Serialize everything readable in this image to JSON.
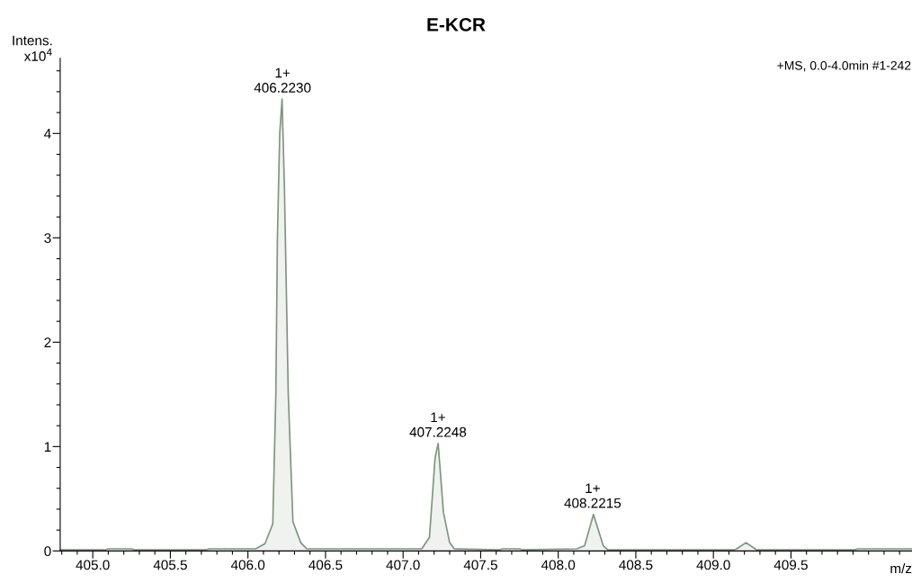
{
  "chart_data": {
    "type": "area",
    "title": "E-KCR",
    "ylabel": "Intens.\nx10$^{4}$",
    "xlabel": "m/z",
    "annotations": [
      "+MS, 0.0-4.0min #1-242",
      {
        "text": "1+\n406.2230",
        "x": 406.223,
        "y": 4.33
      },
      {
        "text": "1+\n407.2248",
        "x": 407.2248,
        "y": 1.03
      },
      {
        "text": "1+\n408.2215",
        "x": 408.2215,
        "y": 0.35
      }
    ],
    "series": [
      {
        "color": "#7d967d",
        "x": [
          404.79,
          405.08,
          405.1,
          405.25,
          405.27,
          405.73,
          405.75,
          406.05,
          406.11,
          406.16,
          406.18,
          406.19,
          406.205,
          406.22,
          406.235,
          406.26,
          406.29,
          406.34,
          406.38,
          407.12,
          407.17,
          407.206,
          407.226,
          407.26,
          407.3,
          407.33,
          407.62,
          407.64,
          407.75,
          407.77,
          408.12,
          408.17,
          408.227,
          408.29,
          408.32,
          409.13,
          409.15,
          409.21,
          409.28,
          409.3,
          409.91,
          409.93,
          410.28
        ],
        "values": [
          0.01,
          0.01,
          0.02,
          0.02,
          0.01,
          0.01,
          0.02,
          0.02,
          0.07,
          0.26,
          1.5,
          3.0,
          4.0,
          4.33,
          3.5,
          1.5,
          0.28,
          0.08,
          0.02,
          0.02,
          0.13,
          0.89,
          1.03,
          0.37,
          0.08,
          0.02,
          0.01,
          0.02,
          0.02,
          0.01,
          0.02,
          0.05,
          0.35,
          0.05,
          0.01,
          0.01,
          0.02,
          0.08,
          0.01,
          0.01,
          0.01,
          0.02,
          0.02
        ]
      }
    ],
    "xlim": [
      404.79,
      410.28
    ],
    "ylim": [
      0,
      4.72
    ],
    "xticks": [
      {
        "value": 405,
        "label": "405.0"
      },
      405.5,
      {
        "value": 406,
        "label": "406.0"
      },
      406.5,
      {
        "value": 407,
        "label": "407.0"
      },
      407.5,
      {
        "value": 408,
        "label": "408.0"
      },
      408.5,
      {
        "value": 409,
        "label": "409.0"
      },
      409.5,
      {
        "value": 410.0,
        "label": null
      },
      {
        "value": 404.8,
        "label": null
      },
      {
        "value": 404.9,
        "label": null
      },
      {
        "value": 405.1,
        "label": null
      },
      {
        "value": 405.2,
        "label": null
      },
      {
        "value": 405.3,
        "label": null
      },
      {
        "value": 405.4,
        "label": null
      },
      {
        "value": 405.6,
        "label": null
      },
      {
        "value": 405.7,
        "label": null
      },
      {
        "value": 405.8,
        "label": null
      },
      {
        "value": 405.9,
        "label": null
      },
      {
        "value": 406.1,
        "label": null
      },
      {
        "value": 406.2,
        "label": null
      },
      {
        "value": 406.3,
        "label": null
      },
      {
        "value": 406.4,
        "label": null
      },
      {
        "value": 406.6,
        "label": null
      },
      {
        "value": 406.7,
        "label": null
      },
      {
        "value": 406.8,
        "label": null
      },
      {
        "value": 406.9,
        "label": null
      },
      {
        "value": 407.1,
        "label": null
      },
      {
        "value": 407.2,
        "label": null
      },
      {
        "value": 407.3,
        "label": null
      },
      {
        "value": 407.4,
        "label": null
      },
      {
        "value": 407.6,
        "label": null
      },
      {
        "value": 407.7,
        "label": null
      },
      {
        "value": 407.8,
        "label": null
      },
      {
        "value": 407.9,
        "label": null
      },
      {
        "value": 408.1,
        "label": null
      },
      {
        "value": 408.2,
        "label": null
      },
      {
        "value": 408.3,
        "label": null
      },
      {
        "value": 408.4,
        "label": null
      },
      {
        "value": 408.6,
        "label": null
      },
      {
        "value": 408.7,
        "label": null
      },
      {
        "value": 408.8,
        "label": null
      },
      {
        "value": 408.9,
        "label": null
      },
      {
        "value": 409.1,
        "label": null
      },
      {
        "value": 409.2,
        "label": null
      },
      {
        "value": 409.3,
        "label": null
      },
      {
        "value": 409.4,
        "label": null
      },
      {
        "value": 409.6,
        "label": null
      },
      {
        "value": 409.7,
        "label": null
      },
      {
        "value": 409.8,
        "label": null
      },
      {
        "value": 409.9,
        "label": null
      },
      {
        "value": 410.1,
        "label": null
      },
      {
        "value": 410.2,
        "label": null
      }
    ],
    "yticks": [
      0,
      1,
      2,
      3,
      4,
      {
        "value": 0.2,
        "label": null
      },
      {
        "value": 0.4,
        "label": null
      },
      {
        "value": 0.6,
        "label": null
      },
      {
        "value": 0.8,
        "label": null
      },
      {
        "value": 1.2,
        "label": null
      },
      {
        "value": 1.4,
        "label": null
      },
      {
        "value": 1.6,
        "label": null
      },
      {
        "value": 1.8,
        "label": null
      },
      {
        "value": 2.2,
        "label": null
      },
      {
        "value": 2.4,
        "label": null
      },
      {
        "value": 2.6,
        "label": null
      },
      {
        "value": 2.8,
        "label": null
      },
      {
        "value": 3.2,
        "label": null
      },
      {
        "value": 3.4,
        "label": null
      },
      {
        "value": 3.6,
        "label": null
      },
      {
        "value": 3.8,
        "label": null
      },
      {
        "value": 4.2,
        "label": null
      },
      {
        "value": 4.4,
        "label": null
      },
      {
        "value": 4.6,
        "label": null
      }
    ],
    "grid": false,
    "legend": false
  }
}
